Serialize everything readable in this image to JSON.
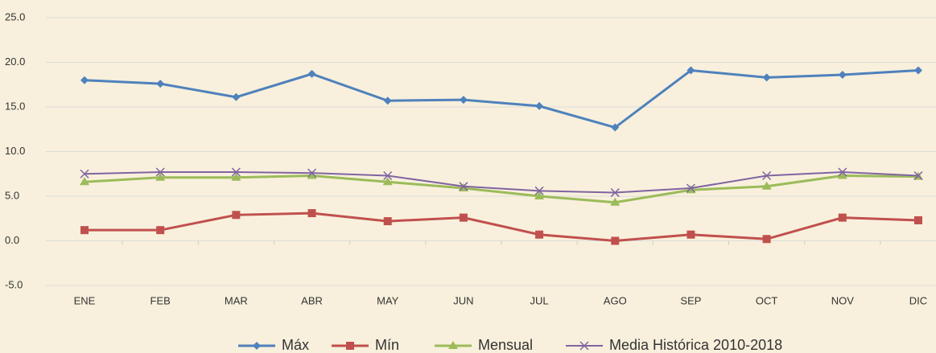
{
  "chart_data": {
    "type": "line",
    "categories": [
      "ENE",
      "FEB",
      "MAR",
      "ABR",
      "MAY",
      "JUN",
      "JUL",
      "AGO",
      "SEP",
      "OCT",
      "NOV",
      "DIC"
    ],
    "series": [
      {
        "name": "Máx",
        "color": "#4f81bd",
        "marker": "diamond",
        "values": [
          18.0,
          17.6,
          16.1,
          18.7,
          15.7,
          15.8,
          15.1,
          12.7,
          19.1,
          18.3,
          18.6,
          19.1
        ]
      },
      {
        "name": "Mín",
        "color": "#c0504d",
        "marker": "square",
        "values": [
          1.2,
          1.2,
          2.9,
          3.1,
          2.2,
          2.6,
          0.7,
          0.0,
          0.7,
          0.2,
          2.6,
          2.3
        ]
      },
      {
        "name": "Mensual",
        "color": "#9bbb59",
        "marker": "triangle",
        "values": [
          6.6,
          7.1,
          7.1,
          7.3,
          6.6,
          5.9,
          5.0,
          4.3,
          5.7,
          6.1,
          7.3,
          7.2
        ]
      },
      {
        "name": "Media Histórica 2010-2018",
        "color": "#8064a2",
        "marker": "x",
        "values": [
          7.5,
          7.7,
          7.7,
          7.6,
          7.3,
          6.1,
          5.6,
          5.4,
          5.9,
          7.3,
          7.7,
          7.3
        ]
      }
    ],
    "ylim": [
      -5,
      25
    ],
    "yticks": [
      {
        "value": -5,
        "label": "-5.0"
      },
      {
        "value": 0,
        "label": "0.0"
      },
      {
        "value": 5,
        "label": "5.0"
      },
      {
        "value": 10,
        "label": "10.0"
      },
      {
        "value": 15,
        "label": "15.0"
      },
      {
        "value": 20,
        "label": "20.0"
      },
      {
        "value": 25,
        "label": "25.0"
      }
    ],
    "grid": true,
    "legend": "bottom"
  }
}
